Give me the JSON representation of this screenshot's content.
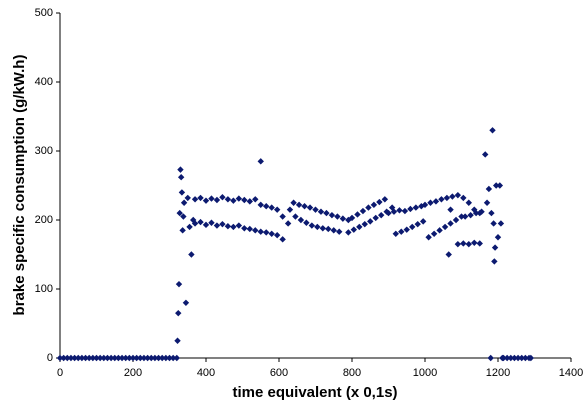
{
  "chart_data": {
    "type": "scatter",
    "xlabel": "time equivalent (x 0,1s)",
    "ylabel": "brake specific consumption (g/kW.h)",
    "color": "#0c1a70",
    "xlim": [
      0,
      1400
    ],
    "ylim": [
      0,
      500
    ],
    "xticks": [
      0,
      200,
      400,
      600,
      800,
      1000,
      1200,
      1400
    ],
    "yticks": [
      0,
      100,
      200,
      300,
      400,
      500
    ],
    "grid": false,
    "x": [
      0,
      10,
      20,
      30,
      40,
      50,
      60,
      70,
      80,
      90,
      100,
      110,
      120,
      130,
      140,
      150,
      160,
      170,
      180,
      190,
      200,
      210,
      220,
      230,
      240,
      250,
      260,
      270,
      280,
      290,
      300,
      310,
      320,
      322,
      324,
      326,
      328,
      330,
      332,
      334,
      336,
      338,
      340,
      345,
      350,
      355,
      360,
      365,
      370,
      385,
      400,
      415,
      430,
      445,
      460,
      475,
      490,
      505,
      520,
      535,
      550,
      565,
      580,
      595,
      610,
      625,
      370,
      385,
      400,
      415,
      430,
      445,
      460,
      475,
      490,
      505,
      520,
      535,
      550,
      565,
      580,
      595,
      610,
      550,
      640,
      655,
      670,
      685,
      700,
      715,
      730,
      745,
      760,
      775,
      790,
      630,
      645,
      660,
      675,
      690,
      705,
      720,
      735,
      750,
      765,
      800,
      815,
      830,
      845,
      860,
      875,
      890,
      790,
      805,
      820,
      835,
      850,
      865,
      880,
      895,
      910,
      900,
      915,
      930,
      945,
      960,
      975,
      990,
      920,
      935,
      950,
      965,
      980,
      995,
      1000,
      1015,
      1030,
      1045,
      1060,
      1075,
      1090,
      1105,
      1120,
      1135,
      1150,
      1010,
      1025,
      1040,
      1055,
      1070,
      1085,
      1100,
      1110,
      1125,
      1140,
      1155,
      1090,
      1105,
      1120,
      1135,
      1150,
      1065,
      1070,
      1165,
      1170,
      1175,
      1180,
      1182,
      1185,
      1188,
      1190,
      1192,
      1195,
      1200,
      1205,
      1208,
      1212,
      1215,
      1225,
      1235,
      1245,
      1255,
      1265,
      1275,
      1285,
      1290
    ],
    "y": [
      0,
      0,
      0,
      0,
      0,
      0,
      0,
      0,
      0,
      0,
      0,
      0,
      0,
      0,
      0,
      0,
      0,
      0,
      0,
      0,
      0,
      0,
      0,
      0,
      0,
      0,
      0,
      0,
      0,
      0,
      0,
      0,
      0,
      25,
      65,
      107,
      210,
      273,
      262,
      240,
      185,
      205,
      225,
      80,
      232,
      190,
      150,
      200,
      230,
      232,
      228,
      231,
      229,
      233,
      230,
      228,
      231,
      229,
      227,
      230,
      222,
      220,
      218,
      215,
      205,
      195,
      195,
      197,
      193,
      196,
      192,
      194,
      191,
      190,
      192,
      188,
      187,
      185,
      183,
      182,
      180,
      178,
      172,
      285,
      225,
      222,
      220,
      218,
      215,
      212,
      210,
      207,
      205,
      202,
      200,
      215,
      205,
      200,
      196,
      192,
      190,
      188,
      187,
      185,
      183,
      203,
      208,
      213,
      218,
      222,
      226,
      230,
      182,
      186,
      190,
      194,
      198,
      203,
      207,
      212,
      218,
      210,
      212,
      214,
      213,
      216,
      218,
      220,
      180,
      183,
      186,
      190,
      194,
      198,
      222,
      225,
      227,
      230,
      232,
      234,
      236,
      232,
      225,
      215,
      210,
      175,
      180,
      185,
      190,
      195,
      200,
      205,
      205,
      207,
      210,
      212,
      165,
      166,
      165,
      167,
      166,
      150,
      215,
      295,
      225,
      245,
      0,
      210,
      330,
      195,
      140,
      160,
      250,
      175,
      250,
      195,
      0,
      0,
      0,
      0,
      0,
      0,
      0,
      0,
      0,
      0
    ]
  }
}
